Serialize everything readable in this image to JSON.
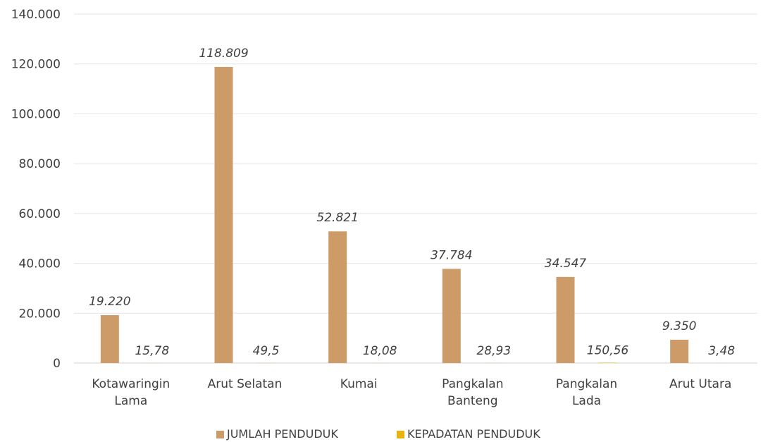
{
  "chart_data": {
    "type": "bar",
    "categories": [
      [
        "Kotawaringin",
        "Lama"
      ],
      [
        "Arut Selatan"
      ],
      [
        "Kumai"
      ],
      [
        "Pangkalan",
        "Banteng"
      ],
      [
        "Pangkalan",
        "Lada"
      ],
      [
        "Arut Utara"
      ]
    ],
    "series": [
      {
        "name": "JUMLAH PENDUDUK",
        "color": "#cd9b68",
        "values": [
          19220,
          118809,
          52821,
          37784,
          34547,
          9350
        ],
        "labels": [
          "19.220",
          "118.809",
          "52.821",
          "37.784",
          "34.547",
          "9.350"
        ]
      },
      {
        "name": "KEPADATAN PENDUDUK",
        "color": "#e8b30c",
        "values": [
          15.78,
          49.5,
          18.08,
          28.93,
          150.56,
          3.48
        ],
        "labels": [
          "15,78",
          "49,5",
          "18,08",
          "28,93",
          "150,56",
          "3,48"
        ]
      }
    ],
    "ylim": [
      0,
      140000
    ],
    "yticks": [
      0,
      20000,
      40000,
      60000,
      80000,
      100000,
      120000,
      140000
    ],
    "ytick_labels": [
      "0",
      "20.000",
      "40.000",
      "60.000",
      "80.000",
      "100.000",
      "120.000",
      "140.000"
    ],
    "grid": true,
    "legend_position": "bottom"
  }
}
